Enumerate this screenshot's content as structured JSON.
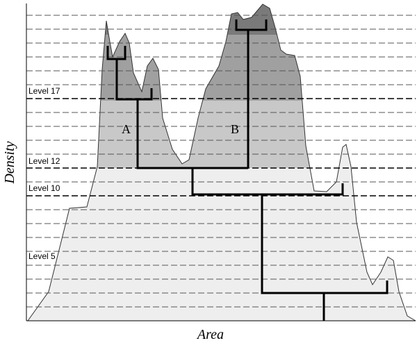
{
  "levels": [
    "Level 17",
    "Level 12",
    "Level 10",
    "Level 5"
  ],
  "regions": [
    "A",
    "B"
  ],
  "y_axis_label": "Density",
  "x_axis_label": "Area"
}
